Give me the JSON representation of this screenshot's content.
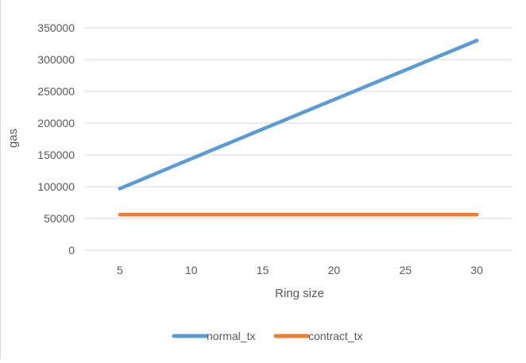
{
  "chart_data": {
    "type": "line",
    "title": "",
    "xlabel": "Ring size",
    "ylabel": "gas",
    "x": [
      5,
      10,
      15,
      20,
      25,
      30
    ],
    "x_ticks": [
      "5",
      "10",
      "15",
      "20",
      "25",
      "30"
    ],
    "y_ticks": [
      "0",
      "50000",
      "100000",
      "150000",
      "200000",
      "250000",
      "300000",
      "350000"
    ],
    "ylim": [
      0,
      350000
    ],
    "grid": "horizontal",
    "legend_position": "bottom",
    "series": [
      {
        "name": "normal_tx",
        "color": "#5b9bd5",
        "values": [
          97000,
          144000,
          190500,
          237000,
          283500,
          330000
        ]
      },
      {
        "name": "contract_tx",
        "color": "#ed7d31",
        "values": [
          56000,
          56000,
          56000,
          56000,
          56000,
          56000
        ]
      }
    ]
  }
}
